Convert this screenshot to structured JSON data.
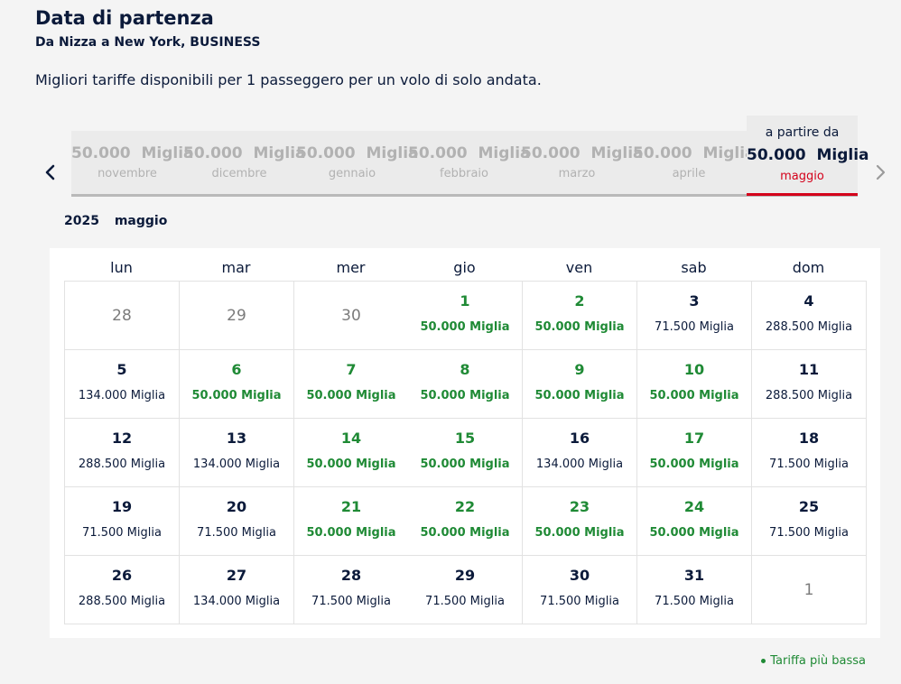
{
  "header": {
    "title": "Data di partenza",
    "route": "Da Nizza a New York, BUSINESS",
    "description": "Migliori tariffe disponibili per 1 passeggero per un volo di solo andata."
  },
  "month_strip": {
    "months": [
      {
        "price": "50.000",
        "unit": "Miglia",
        "name": "novembre"
      },
      {
        "price": "50.000",
        "unit": "Miglia",
        "name": "dicembre"
      },
      {
        "price": "50.000",
        "unit": "Miglia",
        "name": "gennaio"
      },
      {
        "price": "50.000",
        "unit": "Miglia",
        "name": "febbraio"
      },
      {
        "price": "50.000",
        "unit": "Miglia",
        "name": "marzo"
      },
      {
        "price": "50.000",
        "unit": "Miglia",
        "name": "aprile"
      }
    ],
    "selected": {
      "from_label": "a partire da",
      "price": "50.000",
      "unit": "Miglia",
      "name": "maggio"
    },
    "prev_icon": "chevron-left-icon",
    "next_icon": "chevron-right-icon"
  },
  "calendar": {
    "year": "2025",
    "month": "maggio",
    "weekdays": [
      "lun",
      "mar",
      "mer",
      "gio",
      "ven",
      "sab",
      "dom"
    ],
    "cells": [
      {
        "day": "28",
        "price": "",
        "muted": true
      },
      {
        "day": "29",
        "price": "",
        "muted": true
      },
      {
        "day": "30",
        "price": "",
        "muted": true
      },
      {
        "day": "1",
        "price": "50.000  Miglia",
        "low": true
      },
      {
        "day": "2",
        "price": "50.000  Miglia",
        "low": true
      },
      {
        "day": "3",
        "price": "71.500  Miglia"
      },
      {
        "day": "4",
        "price": "288.500  Miglia"
      },
      {
        "day": "5",
        "price": "134.000  Miglia"
      },
      {
        "day": "6",
        "price": "50.000  Miglia",
        "low": true
      },
      {
        "day": "7",
        "price": "50.000  Miglia",
        "low": true
      },
      {
        "day": "8",
        "price": "50.000  Miglia",
        "low": true
      },
      {
        "day": "9",
        "price": "50.000  Miglia",
        "low": true
      },
      {
        "day": "10",
        "price": "50.000  Miglia",
        "low": true
      },
      {
        "day": "11",
        "price": "288.500  Miglia"
      },
      {
        "day": "12",
        "price": "288.500  Miglia"
      },
      {
        "day": "13",
        "price": "134.000  Miglia"
      },
      {
        "day": "14",
        "price": "50.000  Miglia",
        "low": true
      },
      {
        "day": "15",
        "price": "50.000  Miglia",
        "low": true
      },
      {
        "day": "16",
        "price": "134.000  Miglia"
      },
      {
        "day": "17",
        "price": "50.000  Miglia",
        "low": true
      },
      {
        "day": "18",
        "price": "71.500  Miglia"
      },
      {
        "day": "19",
        "price": "71.500  Miglia"
      },
      {
        "day": "20",
        "price": "71.500  Miglia"
      },
      {
        "day": "21",
        "price": "50.000  Miglia",
        "low": true
      },
      {
        "day": "22",
        "price": "50.000  Miglia",
        "low": true
      },
      {
        "day": "23",
        "price": "50.000  Miglia",
        "low": true
      },
      {
        "day": "24",
        "price": "50.000  Miglia",
        "low": true
      },
      {
        "day": "25",
        "price": "71.500  Miglia"
      },
      {
        "day": "26",
        "price": "288.500  Miglia"
      },
      {
        "day": "27",
        "price": "134.000  Miglia"
      },
      {
        "day": "28",
        "price": "71.500  Miglia"
      },
      {
        "day": "29",
        "price": "71.500  Miglia"
      },
      {
        "day": "30",
        "price": "71.500  Miglia"
      },
      {
        "day": "31",
        "price": "71.500  Miglia"
      },
      {
        "day": "1",
        "price": "",
        "muted": true
      }
    ]
  },
  "legend": {
    "label": "Tariffa più bassa",
    "color": "#1f8a35"
  },
  "colors": {
    "low_fare": "#1f8a35",
    "selected_accent": "#d4001a",
    "text": "#0b1a3a"
  }
}
